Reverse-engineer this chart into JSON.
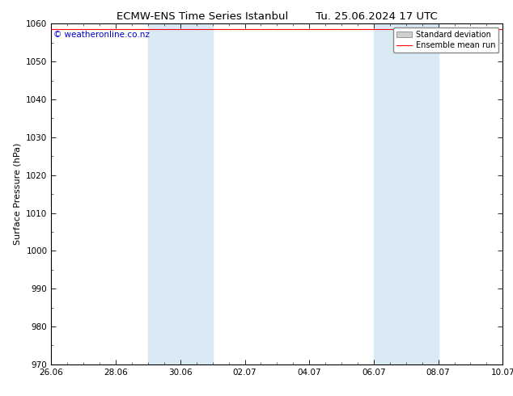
{
  "title": "ECMW-ENS Time Series Istanbul",
  "title2": "Tu. 25.06.2024 17 UTC",
  "ylabel": "Surface Pressure (hPa)",
  "ylim": [
    970,
    1060
  ],
  "yticks": [
    970,
    980,
    990,
    1000,
    1010,
    1020,
    1030,
    1040,
    1050,
    1060
  ],
  "x_start_day": 0,
  "x_end_day": 14,
  "xtick_labels": [
    "26.06",
    "28.06",
    "30.06",
    "02.07",
    "04.07",
    "06.07",
    "08.07",
    "10.07"
  ],
  "xtick_positions": [
    0,
    2,
    4,
    6,
    8,
    10,
    12,
    14
  ],
  "shaded_bands": [
    {
      "start_day": 3.0,
      "end_day": 5.0
    },
    {
      "start_day": 10.0,
      "end_day": 12.0
    }
  ],
  "shade_color": "#daeaf5",
  "mean_run_value": 1058.5,
  "mean_run_color": "#ff0000",
  "mean_run_linewidth": 0.8,
  "legend_std_facecolor": "#d0d0d0",
  "legend_std_edgecolor": "#888888",
  "copyright_text": "© weatheronline.co.nz",
  "copyright_color": "#0000cc",
  "copyright_fontsize": 7.5,
  "title_fontsize": 9.5,
  "tick_fontsize": 7.5,
  "ylabel_fontsize": 8,
  "bg_color": "#ffffff",
  "plot_bg_color": "#ffffff",
  "border_color": "#000000",
  "legend_fontsize": 7,
  "legend_handlelength": 2.0
}
